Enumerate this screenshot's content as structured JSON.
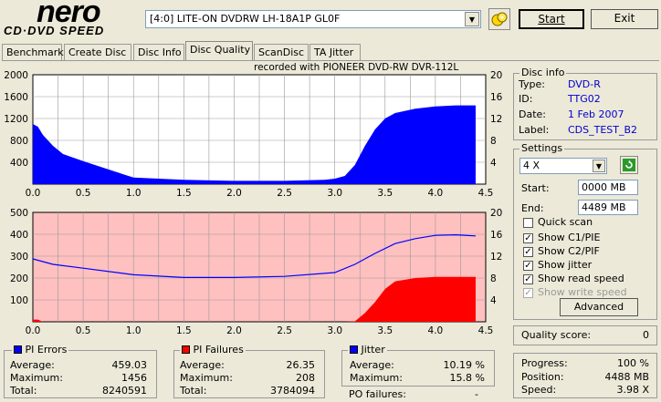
{
  "logo": {
    "brand": "nero",
    "product": "CD·DVD SPEED"
  },
  "drive": {
    "selected": "[4:0]  LITE-ON DVDRW LH-18A1P GL0F"
  },
  "buttons": {
    "start": "Start",
    "exit": "Exit",
    "advanced": "Advanced"
  },
  "tabs": [
    "Benchmark",
    "Create Disc",
    "Disc Info",
    "Disc Quality",
    "ScanDisc",
    "TA Jitter"
  ],
  "active_tab": "Disc Quality",
  "recorded_with": "recorded with PIONEER  DVD-RW  DVR-112L",
  "disc_info": {
    "title": "Disc info",
    "type_label": "Type:",
    "type": "DVD-R",
    "id_label": "ID:",
    "id": "TTG02",
    "date_label": "Date:",
    "date": "1 Feb 2007",
    "label_label": "Label:",
    "label": "CDS_TEST_B2"
  },
  "settings": {
    "title": "Settings",
    "speed": "4 X",
    "start_label": "Start:",
    "start": "0000 MB",
    "end_label": "End:",
    "end": "4489 MB",
    "quick_scan": "Quick scan",
    "show_c1": "Show C1/PIE",
    "show_c2": "Show C2/PIF",
    "show_jitter": "Show jitter",
    "show_read": "Show read speed",
    "show_write": "Show write speed"
  },
  "quality": {
    "label": "Quality score:",
    "value": "0"
  },
  "progress": {
    "progress_label": "Progress:",
    "progress": "100 %",
    "position_label": "Position:",
    "position": "4488 MB",
    "speed_label": "Speed:",
    "speed": "3.98 X"
  },
  "pi_errors": {
    "title": "PI Errors",
    "avg_label": "Average:",
    "avg": "459.03",
    "max_label": "Maximum:",
    "max": "1456",
    "total_label": "Total:",
    "total": "8240591"
  },
  "pi_failures": {
    "title": "PI Failures",
    "avg_label": "Average:",
    "avg": "26.35",
    "max_label": "Maximum:",
    "max": "208",
    "total_label": "Total:",
    "total": "3784094"
  },
  "jitter": {
    "title": "Jitter",
    "avg_label": "Average:",
    "avg": "10.19 %",
    "max_label": "Maximum:",
    "max": "15.8 %",
    "po_label": "PO failures:",
    "po": "-"
  },
  "colors": {
    "pie": "#0000ff",
    "pif": "#ff0000",
    "jitter": "#0000ff",
    "bg_pink": "#ffc0c0",
    "accent_blue": "#0000cc"
  },
  "chart_data": [
    {
      "type": "area",
      "name": "PI Errors",
      "x_ticks": [
        "0.0",
        "0.5",
        "1.0",
        "1.5",
        "2.0",
        "2.5",
        "3.0",
        "3.5",
        "4.0",
        "4.5"
      ],
      "y_left_ticks": [
        "400",
        "800",
        "1200",
        "1600",
        "2000"
      ],
      "y_right_ticks": [
        "4",
        "8",
        "12",
        "16",
        "20"
      ],
      "xlim": [
        0,
        4.5
      ],
      "ylim": [
        0,
        2000
      ],
      "series": [
        {
          "x": [
            0,
            0.05,
            0.1,
            0.2,
            0.3,
            0.5,
            0.7,
            0.9,
            1.0,
            1.5,
            2.0,
            2.5,
            2.9,
            3.0,
            3.1,
            3.2,
            3.3,
            3.4,
            3.5,
            3.6,
            3.8,
            4.0,
            4.2,
            4.4
          ],
          "y": [
            1100,
            1050,
            900,
            700,
            550,
            420,
            300,
            180,
            120,
            80,
            60,
            60,
            80,
            100,
            150,
            350,
            700,
            1000,
            1200,
            1300,
            1380,
            1420,
            1440,
            1440
          ]
        }
      ]
    },
    {
      "type": "line",
      "name": "PI Failures / Jitter",
      "x_ticks": [
        "0.0",
        "0.5",
        "1.0",
        "1.5",
        "2.0",
        "2.5",
        "3.0",
        "3.5",
        "4.0",
        "4.5"
      ],
      "y_left_ticks": [
        "100",
        "200",
        "300",
        "400",
        "500"
      ],
      "y_right_ticks": [
        "4",
        "8",
        "12",
        "16",
        "20"
      ],
      "xlim": [
        0,
        4.5
      ],
      "ylim_left": [
        0,
        500
      ],
      "ylim_right": [
        0,
        20
      ],
      "series": [
        {
          "name": "PI Failures",
          "x": [
            0,
            0.05,
            0.1,
            3.1,
            3.2,
            3.3,
            3.4,
            3.5,
            3.6,
            3.8,
            4.0,
            4.2,
            4.4
          ],
          "y": [
            10,
            10,
            0,
            0,
            2,
            40,
            90,
            150,
            185,
            200,
            205,
            205,
            205
          ]
        },
        {
          "name": "Jitter",
          "x": [
            0,
            0.2,
            0.5,
            1.0,
            1.5,
            2.0,
            2.5,
            3.0,
            3.2,
            3.4,
            3.6,
            3.8,
            4.0,
            4.2,
            4.4
          ],
          "y": [
            11.5,
            10.5,
            9.8,
            8.6,
            8.1,
            8.1,
            8.3,
            9.0,
            10.5,
            12.5,
            14.3,
            15.2,
            15.8,
            15.9,
            15.7
          ]
        }
      ]
    }
  ]
}
